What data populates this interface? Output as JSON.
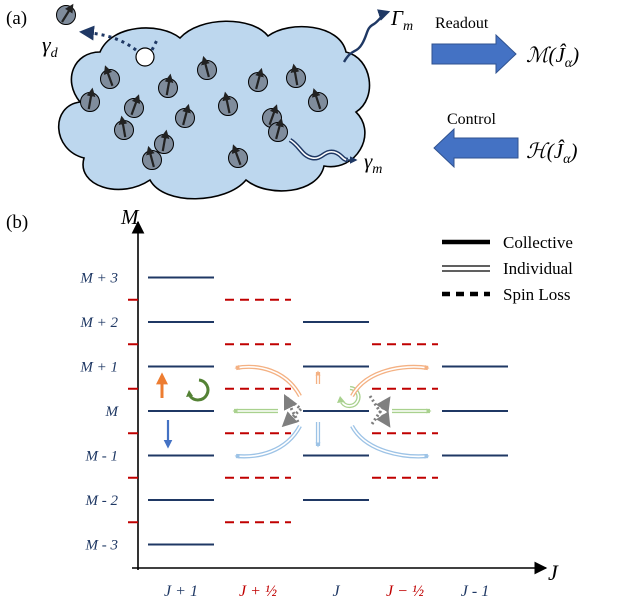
{
  "panel_a": {
    "label": "(a)",
    "gamma_d": "γ",
    "gamma_d_sub": "d",
    "Gamma_m": "Γ",
    "Gamma_m_sub": "m",
    "gamma_m": "γ",
    "gamma_m_sub": "m",
    "readout_label": "Readout",
    "readout_expr_pre": "ℳ(",
    "readout_expr_J": "Ĵ",
    "readout_expr_sub": "α",
    "readout_expr_post": ")",
    "control_label": "Control",
    "control_expr_pre": "ℋ(",
    "control_expr_J": "Ĵ",
    "control_expr_sub": "α",
    "control_expr_post": ")",
    "colors": {
      "cloud_fill": "#bdd7ee",
      "cloud_stroke": "#000000",
      "spin_fill": "#7f8c9c",
      "navy": "#1f3864",
      "arrow_blue": "#4472c4"
    }
  },
  "panel_b": {
    "label": "(b)",
    "y_axis_label": "M",
    "x_axis_label": "J",
    "m_labels": [
      "M + 3",
      "M + 2",
      "M + 1",
      "M",
      "M - 1",
      "M - 2",
      "M - 3"
    ],
    "j_labels": [
      {
        "text": "J + 1",
        "color": "#1f3864"
      },
      {
        "text": "J + ½",
        "color": "#c00000"
      },
      {
        "text": "J",
        "color": "#1f3864"
      },
      {
        "text": "J − ½",
        "color": "#c00000"
      },
      {
        "text": "J - 1",
        "color": "#1f3864"
      }
    ],
    "legend": [
      "Collective",
      "Individual",
      "Spin Loss"
    ],
    "colors": {
      "level_navy": "#1f3864",
      "level_red": "#c00000",
      "orange": "#ed7d31",
      "green": "#548235",
      "blue": "#4472c4",
      "light_orange": "#f4b183",
      "light_green": "#a9d18e",
      "light_blue": "#9dc3e6",
      "loss_gray": "#7f7f7f"
    }
  }
}
